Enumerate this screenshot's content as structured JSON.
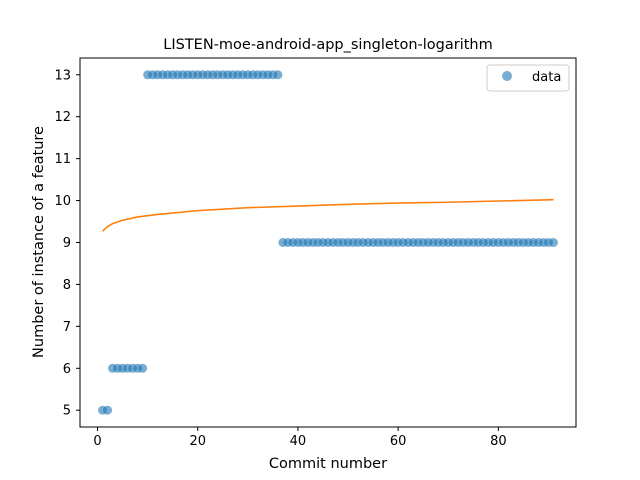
{
  "chart_data": {
    "type": "scatter",
    "title": "LISTEN-moe-android-app_singleton-logarithm",
    "xlabel": "Commit number",
    "ylabel": "Number of instance of a feature",
    "xlim": [
      -3.5,
      95.5
    ],
    "ylim": [
      4.6,
      13.4
    ],
    "xticks": [
      0,
      20,
      40,
      60,
      80
    ],
    "yticks": [
      5,
      6,
      7,
      8,
      9,
      10,
      11,
      12,
      13
    ],
    "grid": false,
    "legend": {
      "position": "top-right",
      "entries": [
        "data"
      ]
    },
    "series": [
      {
        "name": "data",
        "kind": "scatter",
        "color": "#1f77b4",
        "segments": [
          {
            "x_from": 1,
            "x_to": 2,
            "y": 5
          },
          {
            "x_from": 3,
            "x_to": 9,
            "y": 6
          },
          {
            "x_from": 10,
            "x_to": 36,
            "y": 13
          },
          {
            "x_from": 37,
            "x_to": 91,
            "y": 9
          }
        ]
      },
      {
        "kind": "line",
        "color": "#ff7f0e",
        "x": [
          1,
          2,
          3,
          5,
          8,
          12,
          20,
          30,
          40,
          50,
          60,
          70,
          80,
          91
        ],
        "y": [
          9.27,
          9.38,
          9.45,
          9.53,
          9.61,
          9.67,
          9.76,
          9.83,
          9.87,
          9.91,
          9.94,
          9.96,
          9.99,
          10.02
        ]
      }
    ]
  }
}
